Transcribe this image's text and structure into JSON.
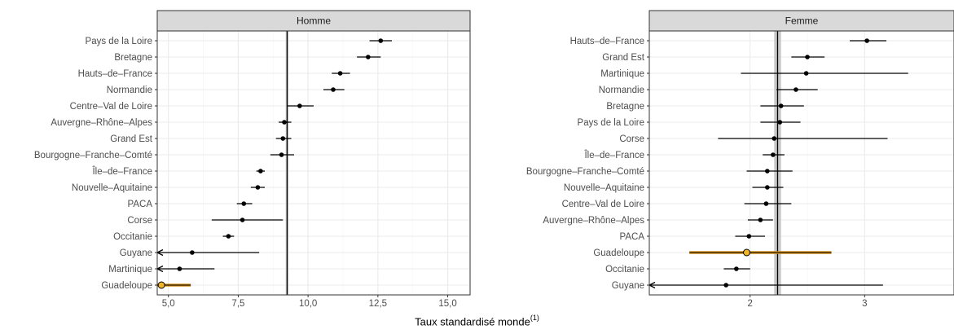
{
  "chart_data": [
    {
      "type": "forest",
      "panel_title": "Homme",
      "xlim": [
        4.6,
        15.8
      ],
      "xticks": [
        5,
        7.5,
        10,
        12.5,
        15
      ],
      "xtick_labels": [
        "5,0",
        "7,5",
        "10,0",
        "12,5",
        "15,0"
      ],
      "reference_line": 9.25,
      "reference_band": [
        9.2,
        9.3
      ],
      "highlight": "Guadeloupe",
      "rows": [
        {
          "label": "Pays de la Loire",
          "value": 12.6,
          "low": 12.2,
          "high": 13.0
        },
        {
          "label": "Bretagne",
          "value": 12.15,
          "low": 11.75,
          "high": 12.6
        },
        {
          "label": "Hauts–de–France",
          "value": 11.15,
          "low": 10.85,
          "high": 11.5
        },
        {
          "label": "Normandie",
          "value": 10.9,
          "low": 10.55,
          "high": 11.3
        },
        {
          "label": "Centre–Val de Loire",
          "value": 9.7,
          "low": 9.25,
          "high": 10.2
        },
        {
          "label": "Auvergne–Rhône–Alpes",
          "value": 9.15,
          "low": 8.95,
          "high": 9.4
        },
        {
          "label": "Grand Est",
          "value": 9.1,
          "low": 8.85,
          "high": 9.4
        },
        {
          "label": "Bourgogne–Franche–Comté",
          "value": 9.05,
          "low": 8.65,
          "high": 9.5
        },
        {
          "label": "Île–de–France",
          "value": 8.3,
          "low": 8.15,
          "high": 8.45
        },
        {
          "label": "Nouvelle–Aquitaine",
          "value": 8.2,
          "low": 7.95,
          "high": 8.45
        },
        {
          "label": "PACA",
          "value": 7.7,
          "low": 7.45,
          "high": 8.0
        },
        {
          "label": "Corse",
          "value": 7.65,
          "low": 6.55,
          "high": 9.1
        },
        {
          "label": "Occitanie",
          "value": 7.15,
          "low": 6.95,
          "high": 7.35
        },
        {
          "label": "Guyane",
          "value": 5.85,
          "low": 4.6,
          "high": 8.25,
          "low_clipped": true
        },
        {
          "label": "Martinique",
          "value": 5.4,
          "low": 4.6,
          "high": 6.65,
          "low_clipped": true
        },
        {
          "label": "Guadeloupe",
          "value": 4.75,
          "low": 4.6,
          "high": 5.8
        }
      ]
    },
    {
      "type": "forest",
      "panel_title": "Femme",
      "xlim": [
        1.12,
        3.78
      ],
      "xticks": [
        2,
        3
      ],
      "xtick_labels": [
        "2",
        "3"
      ],
      "reference_line": 2.24,
      "reference_band": [
        2.21,
        2.27
      ],
      "highlight": "Guadeloupe",
      "rows": [
        {
          "label": "Hauts–de–France",
          "value": 3.02,
          "low": 2.87,
          "high": 3.19
        },
        {
          "label": "Grand Est",
          "value": 2.5,
          "low": 2.36,
          "high": 2.65
        },
        {
          "label": "Martinique",
          "value": 2.49,
          "low": 1.92,
          "high": 3.38
        },
        {
          "label": "Normandie",
          "value": 2.4,
          "low": 2.23,
          "high": 2.59
        },
        {
          "label": "Bretagne",
          "value": 2.27,
          "low": 2.09,
          "high": 2.47
        },
        {
          "label": "Pays de la Loire",
          "value": 2.26,
          "low": 2.09,
          "high": 2.44
        },
        {
          "label": "Corse",
          "value": 2.21,
          "low": 1.72,
          "high": 3.2
        },
        {
          "label": "Île–de–France",
          "value": 2.2,
          "low": 2.11,
          "high": 2.3
        },
        {
          "label": "Bourgogne–Franche–Comté",
          "value": 2.15,
          "low": 1.97,
          "high": 2.37
        },
        {
          "label": "Nouvelle–Aquitaine",
          "value": 2.15,
          "low": 2.02,
          "high": 2.29
        },
        {
          "label": "Centre–Val de Loire",
          "value": 2.14,
          "low": 1.95,
          "high": 2.36
        },
        {
          "label": "Auvergne–Rhône–Alpes",
          "value": 2.09,
          "low": 1.98,
          "high": 2.2
        },
        {
          "label": "PACA",
          "value": 1.99,
          "low": 1.87,
          "high": 2.13
        },
        {
          "label": "Guadeloupe",
          "value": 1.97,
          "low": 1.47,
          "high": 2.71
        },
        {
          "label": "Occitanie",
          "value": 1.88,
          "low": 1.77,
          "high": 2.0
        },
        {
          "label": "Guyane",
          "value": 1.79,
          "low": 1.12,
          "high": 3.16,
          "low_clipped": true
        }
      ]
    }
  ],
  "x_axis_title": "Taux standardisé monde",
  "x_axis_title_superscript": "(1)",
  "colors": {
    "point": "#000000",
    "highlight_fill": "#f0b429",
    "highlight_line": "#d4901a",
    "reference_band": "#c8c8c8",
    "strip_fill": "#d9d9d9",
    "grid_major": "#ebebeb",
    "grid_minor": "#f5f5f5",
    "panel_border": "#333333"
  }
}
